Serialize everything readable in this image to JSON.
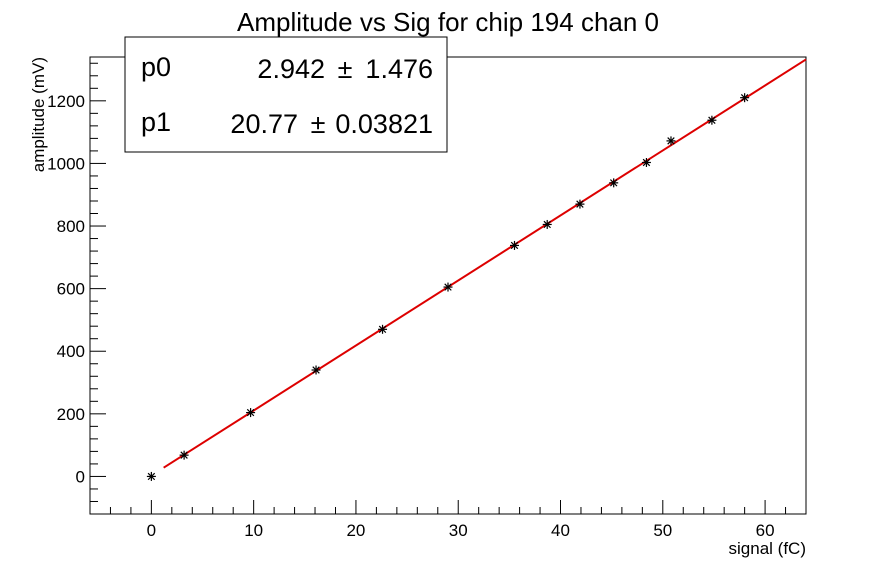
{
  "chart_data": {
    "type": "scatter",
    "title": "Amplitude vs Sig for chip 194 chan 0",
    "xlabel": "signal (fC)",
    "ylabel": "amplitude (mV)",
    "xlim": [
      -6,
      64
    ],
    "ylim": [
      -120,
      1340
    ],
    "x_ticks": [
      0,
      10,
      20,
      30,
      40,
      50,
      60
    ],
    "y_ticks": [
      0,
      200,
      400,
      600,
      800,
      1000,
      1200
    ],
    "grid": false,
    "series": [
      {
        "marker": "star",
        "color": "#000000",
        "x": [
          0,
          3.2,
          9.7,
          16.1,
          22.6,
          29.0,
          35.5,
          38.7,
          41.9,
          45.2,
          48.4,
          50.8,
          54.8,
          58.0
        ],
        "y": [
          0,
          68,
          204,
          340,
          470,
          605,
          738,
          805,
          870,
          938,
          1003,
          1072,
          1138,
          1210
        ]
      }
    ],
    "fit": {
      "color": "#dd0000",
      "x_range": [
        1.2,
        64
      ],
      "p0": 2.942,
      "p1": 20.77
    },
    "stats_box": [
      {
        "name": "p0",
        "value": "2.942",
        "pm": "±",
        "error": "1.476"
      },
      {
        "name": "p1",
        "value": "20.77",
        "pm": "±",
        "error": "0.03821"
      }
    ]
  }
}
